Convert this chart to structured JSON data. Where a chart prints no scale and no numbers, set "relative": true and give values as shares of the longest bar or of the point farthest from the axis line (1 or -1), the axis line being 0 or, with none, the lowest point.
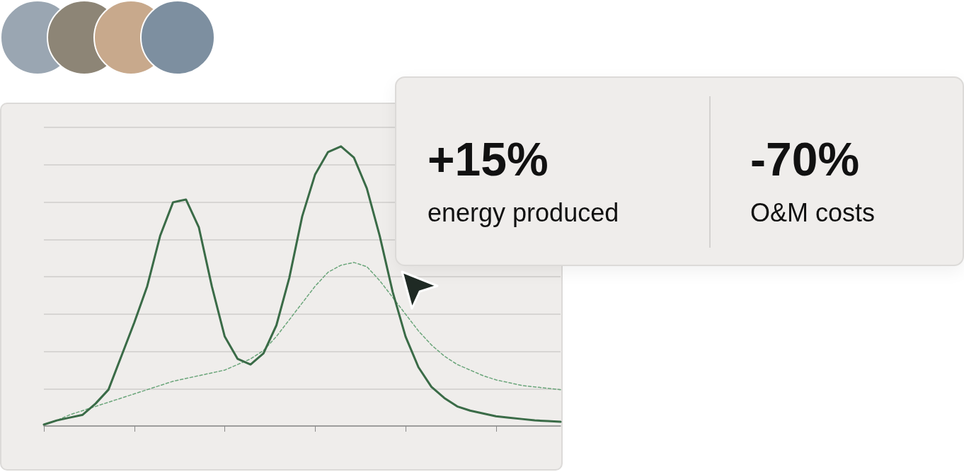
{
  "chart_data": [
    {
      "type": "line",
      "relative": true,
      "grid": "y",
      "marker": "none",
      "categories": [
        null,
        null,
        null,
        null,
        null,
        null,
        null,
        null,
        null,
        null,
        null,
        null,
        null,
        null,
        null,
        null,
        null,
        null,
        null,
        null,
        null,
        null,
        null,
        null,
        null,
        null,
        null,
        null,
        null,
        null,
        null,
        null,
        null,
        null,
        null,
        null,
        null,
        null,
        null,
        null,
        null
      ],
      "series": [
        {
          "color": "#3a6b47",
          "line_style": "solid",
          "values": [
            0.005,
            0.02,
            0.03,
            0.04,
            0.08,
            0.13,
            0.25,
            0.37,
            0.5,
            0.68,
            0.8,
            0.81,
            0.71,
            0.5,
            0.32,
            0.24,
            0.22,
            0.26,
            0.36,
            0.53,
            0.75,
            0.9,
            0.98,
            1,
            0.96,
            0.85,
            0.68,
            0.48,
            0.32,
            0.21,
            0.14,
            0.1,
            0.07,
            0.055,
            0.045,
            0.035,
            0.03,
            0.025,
            0.02,
            0.018,
            0.015
          ]
        },
        {
          "color": "#6aa57a",
          "line_style": "dashed",
          "values": [
            0.005,
            0.02,
            0.04,
            0.055,
            0.07,
            0.085,
            0.1,
            0.115,
            0.13,
            0.145,
            0.16,
            0.17,
            0.18,
            0.19,
            0.2,
            0.22,
            0.24,
            0.27,
            0.32,
            0.38,
            0.44,
            0.5,
            0.55,
            0.575,
            0.585,
            0.57,
            0.52,
            0.46,
            0.4,
            0.34,
            0.29,
            0.25,
            0.22,
            0.2,
            0.18,
            0.165,
            0.155,
            0.145,
            0.14,
            0.135,
            0.13
          ]
        }
      ]
    },
    {
      "type": "other",
      "annotations": [
        "+15%",
        "energy produced",
        "-70%",
        "O&M costs"
      ]
    }
  ]
}
